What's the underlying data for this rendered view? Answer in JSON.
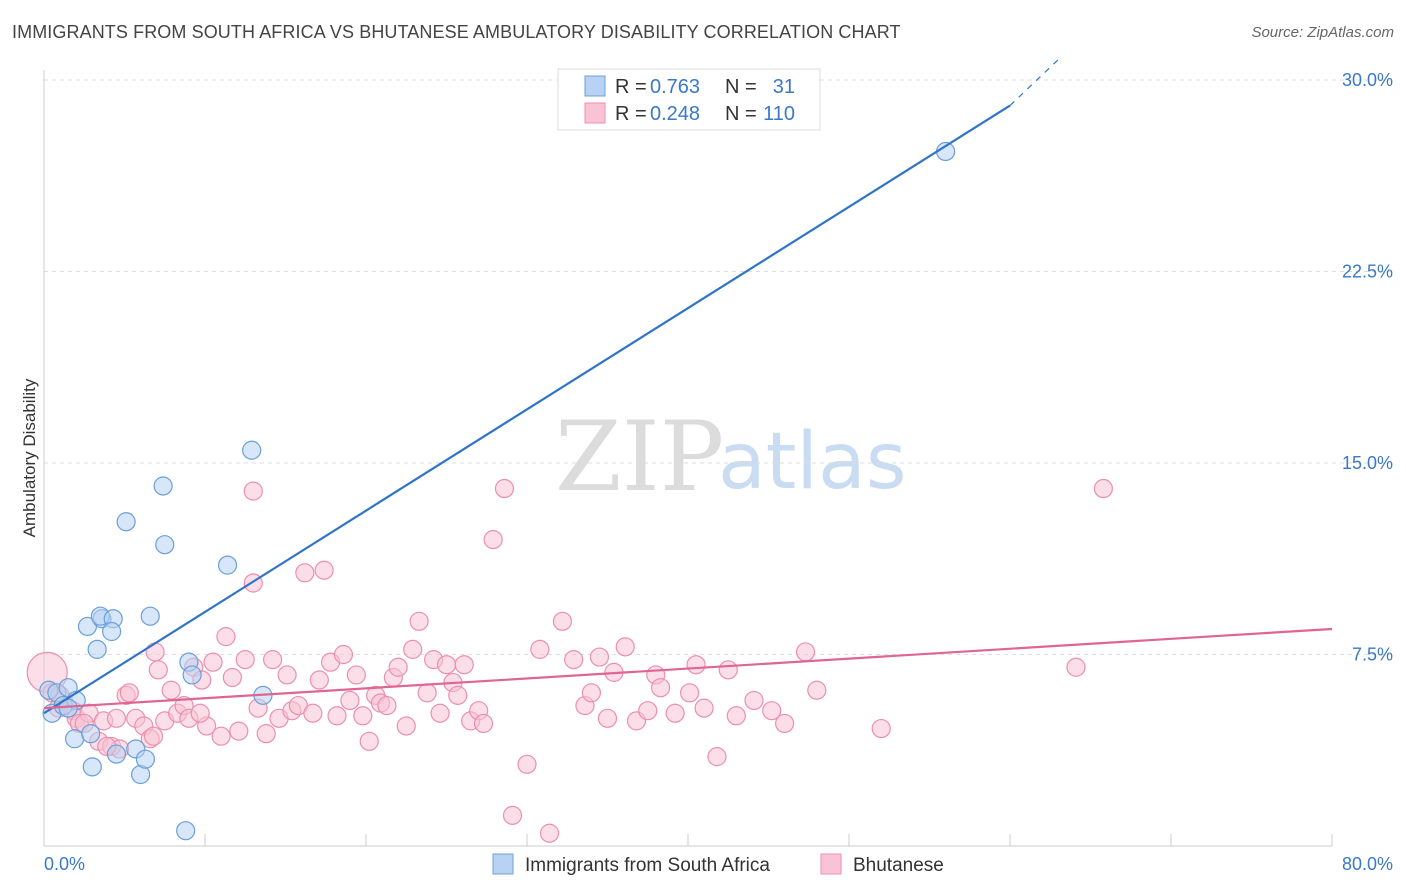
{
  "header": {
    "title": "IMMIGRANTS FROM SOUTH AFRICA VS BHUTANESE AMBULATORY DISABILITY CORRELATION CHART",
    "source": "Source: ZipAtlas.com"
  },
  "watermark": {
    "zip": "ZIP",
    "atlas": "atlas"
  },
  "legend": {
    "series1": {
      "r_label": "R =",
      "r_value": "0.763",
      "n_label": "N =",
      "n_value": "31"
    },
    "series2": {
      "r_label": "R =",
      "r_value": "0.248",
      "n_label": "N =",
      "n_value": "110"
    }
  },
  "colors": {
    "blue_fill": "#b7d2f3",
    "blue_stroke": "#6b9fd8",
    "blue_line": "#2f74c8",
    "pink_fill": "#f8c3d4",
    "pink_stroke": "#ec8fae",
    "pink_line": "#e06592",
    "tick_text": "#3a78c9",
    "grid": "#dddddd"
  },
  "chart_data": {
    "type": "scatter",
    "title": "IMMIGRANTS FROM SOUTH AFRICA VS BHUTANESE AMBULATORY DISABILITY CORRELATION CHART",
    "xlabel": "",
    "ylabel": "Ambulatory Disability",
    "xlim": [
      0,
      80
    ],
    "ylim": [
      0,
      30
    ],
    "x_tick_labels": [
      "0.0%",
      "80.0%"
    ],
    "y_ticks": [
      7.5,
      15.0,
      22.5,
      30.0
    ],
    "y_tick_labels": [
      "7.5%",
      "15.0%",
      "22.5%",
      "30.0%"
    ],
    "grid": "horizontal dashed",
    "legend_position": "top-center",
    "series": [
      {
        "name": "Immigrants from South Africa",
        "r": 0.763,
        "n": 31,
        "trend": {
          "x": [
            0,
            60
          ],
          "y": [
            5.2,
            29.0
          ],
          "dashed_to": [
            63,
            30.8
          ]
        },
        "x": [
          0.3,
          0.5,
          0.8,
          1.2,
          1.5,
          2.0,
          1.9,
          3.3,
          2.7,
          2.9,
          3.6,
          3.5,
          4.3,
          4.2,
          6.0,
          5.7,
          6.3,
          5.1,
          6.6,
          7.5,
          7.4,
          8.8,
          11.4,
          12.9,
          13.6,
          9.0,
          9.2,
          4.5,
          3.0,
          1.5,
          56.0
        ],
        "y": [
          6.1,
          5.2,
          6.0,
          5.5,
          6.2,
          5.7,
          4.2,
          7.7,
          8.6,
          4.4,
          8.9,
          9.0,
          8.9,
          8.4,
          2.8,
          3.8,
          3.4,
          12.7,
          9.0,
          11.8,
          14.1,
          0.6,
          11.0,
          15.5,
          5.9,
          7.2,
          6.7,
          3.6,
          3.1,
          5.4,
          27.2
        ]
      },
      {
        "name": "Bhutanese",
        "r": 0.248,
        "n": 110,
        "trend": {
          "x": [
            0,
            80
          ],
          "y": [
            5.4,
            8.5
          ]
        },
        "x": [
          0.2,
          0.5,
          0.9,
          1.2,
          1.8,
          2.0,
          2.2,
          2.8,
          3.4,
          3.7,
          4.2,
          4.5,
          4.7,
          5.1,
          5.3,
          5.7,
          6.2,
          6.6,
          6.9,
          7.1,
          7.5,
          7.9,
          8.3,
          8.7,
          9.0,
          9.3,
          9.8,
          10.1,
          10.5,
          11.0,
          11.3,
          11.7,
          12.1,
          12.5,
          13.0,
          13.3,
          13.8,
          14.2,
          14.6,
          15.1,
          15.4,
          15.8,
          16.2,
          16.7,
          17.1,
          17.4,
          17.8,
          18.2,
          18.6,
          19.0,
          19.4,
          19.8,
          20.2,
          20.6,
          20.9,
          21.3,
          21.7,
          22.0,
          22.5,
          22.9,
          23.3,
          23.8,
          24.2,
          24.6,
          25.0,
          25.4,
          25.7,
          26.1,
          26.5,
          27.0,
          27.3,
          27.9,
          28.6,
          29.1,
          30.0,
          30.8,
          31.4,
          32.2,
          32.9,
          33.6,
          34.0,
          34.5,
          35.0,
          35.4,
          36.1,
          36.8,
          37.5,
          38.0,
          38.3,
          39.2,
          40.1,
          40.5,
          41.0,
          41.8,
          42.5,
          43.0,
          44.1,
          45.2,
          46.0,
          47.3,
          48.0,
          52.0,
          64.1,
          65.8,
          13.0,
          9.7,
          6.8,
          3.9,
          2.5,
          1.0
        ],
        "y": [
          6.8,
          6.0,
          5.4,
          5.7,
          5.3,
          5.0,
          4.8,
          5.2,
          4.1,
          4.9,
          3.9,
          5.0,
          3.8,
          5.9,
          6.0,
          5.0,
          4.7,
          4.2,
          7.6,
          6.9,
          4.9,
          6.1,
          5.2,
          5.5,
          5.0,
          7.0,
          6.5,
          4.7,
          7.2,
          4.3,
          8.2,
          6.6,
          4.5,
          7.3,
          10.3,
          5.4,
          4.4,
          7.3,
          5.0,
          6.7,
          5.3,
          5.5,
          10.7,
          5.2,
          6.5,
          10.8,
          7.2,
          5.1,
          7.5,
          5.7,
          6.7,
          5.1,
          4.1,
          5.9,
          5.6,
          5.5,
          6.6,
          7.0,
          4.7,
          7.7,
          8.8,
          6.0,
          7.3,
          5.2,
          7.1,
          6.4,
          5.9,
          7.1,
          4.9,
          5.3,
          4.8,
          12.0,
          14.0,
          1.2,
          3.2,
          7.7,
          0.5,
          8.8,
          7.3,
          5.5,
          6.0,
          7.4,
          5.0,
          6.8,
          7.8,
          4.9,
          5.3,
          6.7,
          6.2,
          5.2,
          6.0,
          7.1,
          5.4,
          3.5,
          6.9,
          5.1,
          5.7,
          5.3,
          4.8,
          7.6,
          6.1,
          4.6,
          7.0,
          14.0,
          13.9,
          5.2,
          4.3,
          3.9,
          4.8,
          5.9
        ]
      }
    ],
    "bottom_legend": [
      "Immigrants from South Africa",
      "Bhutanese"
    ]
  }
}
